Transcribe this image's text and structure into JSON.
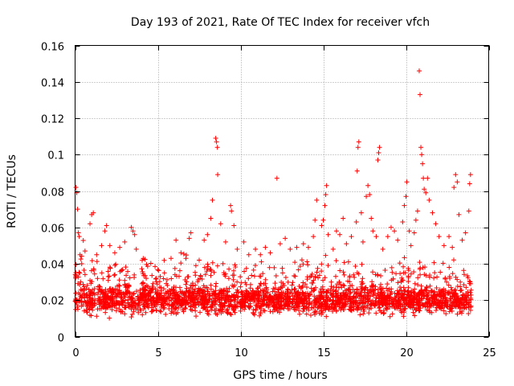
{
  "chart_data": {
    "type": "scatter",
    "title": "Day 193 of 2021, Rate Of TEC Index for receiver vfch",
    "xlabel": "GPS time / hours",
    "ylabel": "ROTI / TECUs",
    "xlim": [
      0,
      25
    ],
    "ylim": [
      0,
      0.16
    ],
    "x_ticks": [
      "0",
      "5",
      "10",
      "15",
      "20",
      "25"
    ],
    "y_ticks": [
      "0",
      "0.02",
      "0.04",
      "0.06",
      "0.08",
      "0.1",
      "0.12",
      "0.14",
      "0.16"
    ],
    "grid": true,
    "marker": "+",
    "color": "#ff0000",
    "series": [
      {
        "name": "ROTI",
        "points": [
          [
            0.05,
            0.082
          ],
          [
            0.1,
            0.079
          ],
          [
            0.15,
            0.07
          ],
          [
            0.2,
            0.057
          ],
          [
            0.25,
            0.055
          ],
          [
            0.3,
            0.045
          ],
          [
            0.4,
            0.04
          ],
          [
            0.6,
            0.047
          ],
          [
            0.9,
            0.062
          ],
          [
            1.0,
            0.067
          ],
          [
            1.1,
            0.068
          ],
          [
            1.3,
            0.045
          ],
          [
            1.6,
            0.05
          ],
          [
            1.8,
            0.058
          ],
          [
            1.9,
            0.061
          ],
          [
            2.1,
            0.05
          ],
          [
            2.4,
            0.046
          ],
          [
            2.7,
            0.049
          ],
          [
            3.0,
            0.052
          ],
          [
            3.4,
            0.06
          ],
          [
            3.5,
            0.058
          ],
          [
            3.6,
            0.056
          ],
          [
            3.7,
            0.048
          ],
          [
            4.3,
            0.032
          ],
          [
            4.9,
            0.032
          ],
          [
            5.4,
            0.035
          ],
          [
            5.8,
            0.043
          ],
          [
            6.1,
            0.053
          ],
          [
            6.4,
            0.046
          ],
          [
            6.7,
            0.043
          ],
          [
            6.9,
            0.054
          ],
          [
            7.0,
            0.057
          ],
          [
            7.3,
            0.039
          ],
          [
            7.5,
            0.042
          ],
          [
            7.8,
            0.053
          ],
          [
            8.0,
            0.056
          ],
          [
            8.2,
            0.065
          ],
          [
            8.3,
            0.075
          ],
          [
            8.5,
            0.109
          ],
          [
            8.55,
            0.107
          ],
          [
            8.6,
            0.104
          ],
          [
            8.62,
            0.089
          ],
          [
            8.8,
            0.062
          ],
          [
            9.1,
            0.052
          ],
          [
            9.4,
            0.072
          ],
          [
            9.45,
            0.069
          ],
          [
            9.6,
            0.061
          ],
          [
            9.8,
            0.048
          ],
          [
            10.2,
            0.052
          ],
          [
            10.5,
            0.045
          ],
          [
            10.9,
            0.048
          ],
          [
            11.2,
            0.045
          ],
          [
            11.5,
            0.049
          ],
          [
            11.8,
            0.046
          ],
          [
            12.2,
            0.087
          ],
          [
            12.4,
            0.051
          ],
          [
            12.7,
            0.054
          ],
          [
            13.0,
            0.048
          ],
          [
            13.4,
            0.049
          ],
          [
            13.8,
            0.051
          ],
          [
            14.1,
            0.049
          ],
          [
            14.4,
            0.055
          ],
          [
            14.5,
            0.064
          ],
          [
            14.6,
            0.075
          ],
          [
            14.9,
            0.061
          ],
          [
            15.0,
            0.064
          ],
          [
            15.1,
            0.072
          ],
          [
            15.15,
            0.078
          ],
          [
            15.2,
            0.083
          ],
          [
            15.3,
            0.056
          ],
          [
            15.6,
            0.048
          ],
          [
            15.8,
            0.058
          ],
          [
            16.0,
            0.056
          ],
          [
            16.2,
            0.065
          ],
          [
            16.4,
            0.051
          ],
          [
            16.7,
            0.055
          ],
          [
            17.0,
            0.063
          ],
          [
            17.05,
            0.091
          ],
          [
            17.1,
            0.104
          ],
          [
            17.15,
            0.107
          ],
          [
            17.3,
            0.068
          ],
          [
            17.4,
            0.052
          ],
          [
            17.6,
            0.077
          ],
          [
            17.7,
            0.083
          ],
          [
            17.8,
            0.078
          ],
          [
            17.9,
            0.065
          ],
          [
            18.0,
            0.058
          ],
          [
            18.2,
            0.055
          ],
          [
            18.3,
            0.097
          ],
          [
            18.35,
            0.101
          ],
          [
            18.4,
            0.104
          ],
          [
            18.6,
            0.048
          ],
          [
            18.9,
            0.055
          ],
          [
            19.1,
            0.06
          ],
          [
            19.3,
            0.058
          ],
          [
            19.5,
            0.053
          ],
          [
            19.8,
            0.063
          ],
          [
            19.9,
            0.072
          ],
          [
            20.0,
            0.077
          ],
          [
            20.05,
            0.085
          ],
          [
            20.2,
            0.058
          ],
          [
            20.3,
            0.05
          ],
          [
            20.5,
            0.057
          ],
          [
            20.6,
            0.064
          ],
          [
            20.7,
            0.069
          ],
          [
            20.8,
            0.146
          ],
          [
            20.85,
            0.133
          ],
          [
            20.9,
            0.104
          ],
          [
            20.95,
            0.1
          ],
          [
            21.0,
            0.095
          ],
          [
            21.05,
            0.087
          ],
          [
            21.1,
            0.081
          ],
          [
            21.2,
            0.079
          ],
          [
            21.3,
            0.087
          ],
          [
            21.4,
            0.075
          ],
          [
            21.6,
            0.068
          ],
          [
            21.8,
            0.062
          ],
          [
            22.0,
            0.055
          ],
          [
            22.3,
            0.05
          ],
          [
            22.6,
            0.055
          ],
          [
            22.8,
            0.049
          ],
          [
            22.9,
            0.082
          ],
          [
            23.0,
            0.089
          ],
          [
            23.1,
            0.085
          ],
          [
            23.2,
            0.067
          ],
          [
            23.4,
            0.053
          ],
          [
            23.6,
            0.057
          ],
          [
            23.8,
            0.069
          ],
          [
            23.85,
            0.084
          ],
          [
            23.9,
            0.089
          ]
        ]
      }
    ]
  }
}
